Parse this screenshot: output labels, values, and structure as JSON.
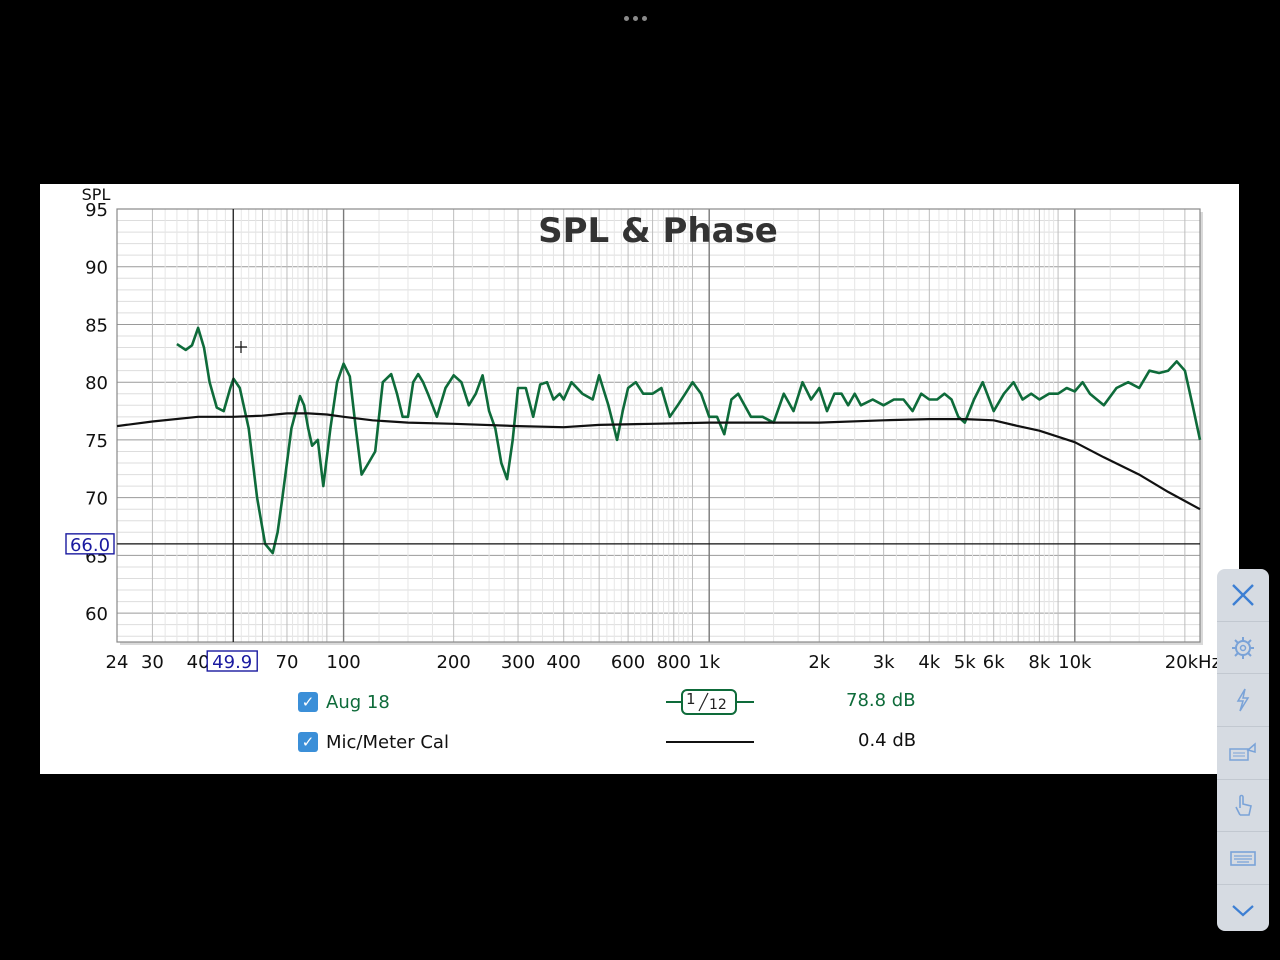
{
  "chart_data": {
    "type": "line",
    "title": "SPL & Phase",
    "ylabel": "SPL",
    "xlabel": "",
    "x_scale": "log",
    "xlim": [
      24,
      22000
    ],
    "ylim": [
      57.5,
      95
    ],
    "y_ticks": [
      "95",
      "90",
      "85",
      "80",
      "75",
      "70",
      "65",
      "60"
    ],
    "x_ticks": [
      "24",
      "30",
      "40",
      "70",
      "100",
      "200",
      "300",
      "400",
      "600",
      "800",
      "1k",
      "2k",
      "3k",
      "4k",
      "5k",
      "6k",
      "8k",
      "10k",
      "20kHz"
    ],
    "cursor": {
      "x_label": "49.9",
      "y_label": "66.0"
    },
    "series": [
      {
        "name": "Aug 18",
        "color": "#0e6b3a",
        "x": [
          35,
          37,
          38.5,
          40,
          41.5,
          43,
          45,
          47,
          49,
          50,
          52,
          55,
          58,
          61,
          64,
          66,
          68,
          72,
          76,
          78,
          80,
          82,
          85,
          88,
          92,
          96,
          100,
          104,
          108,
          112,
          117,
          122,
          128,
          135,
          140,
          145,
          150,
          155,
          160,
          165,
          170,
          180,
          190,
          200,
          210,
          220,
          230,
          240,
          250,
          260,
          270,
          280,
          290,
          300,
          315,
          330,
          345,
          360,
          375,
          390,
          400,
          420,
          450,
          480,
          500,
          530,
          560,
          580,
          600,
          630,
          660,
          700,
          740,
          780,
          820,
          860,
          900,
          950,
          1000,
          1050,
          1100,
          1150,
          1200,
          1300,
          1400,
          1500,
          1600,
          1700,
          1800,
          1900,
          2000,
          2100,
          2200,
          2300,
          2400,
          2500,
          2600,
          2800,
          3000,
          3200,
          3400,
          3600,
          3800,
          4000,
          4200,
          4400,
          4600,
          4800,
          5000,
          5300,
          5600,
          6000,
          6400,
          6800,
          7200,
          7600,
          8000,
          8500,
          9000,
          9500,
          10000,
          10500,
          11000,
          12000,
          13000,
          14000,
          15000,
          16000,
          17000,
          18000,
          19000,
          20000,
          21000,
          22000
        ],
        "values": [
          83.3,
          82.8,
          83.2,
          84.7,
          83.0,
          80.0,
          77.8,
          77.5,
          79.5,
          80.3,
          79.5,
          76.0,
          70.0,
          66.0,
          65.2,
          67.0,
          70.0,
          76.0,
          78.8,
          78.0,
          76.0,
          74.5,
          75.0,
          71.0,
          76.0,
          80.0,
          81.6,
          80.5,
          76.0,
          72.0,
          73.0,
          74.0,
          80.0,
          80.7,
          79.0,
          77.0,
          77.0,
          80.0,
          80.7,
          80.0,
          79.0,
          77.0,
          79.5,
          80.6,
          80.0,
          78.0,
          79.0,
          80.6,
          77.5,
          76.0,
          73.0,
          71.6,
          75.0,
          79.5,
          79.5,
          77.0,
          79.8,
          80.0,
          78.5,
          79.0,
          78.5,
          80.0,
          79.0,
          78.5,
          80.6,
          78.0,
          75.0,
          77.5,
          79.5,
          80.0,
          79.0,
          79.0,
          79.5,
          77.0,
          78.0,
          79.0,
          80.0,
          79.0,
          77.0,
          77.0,
          75.5,
          78.5,
          79.0,
          77.0,
          77.0,
          76.5,
          79.0,
          77.5,
          80.0,
          78.5,
          79.5,
          77.5,
          79.0,
          79.0,
          78.0,
          79.0,
          78.0,
          78.5,
          78.0,
          78.5,
          78.5,
          77.5,
          79.0,
          78.5,
          78.5,
          79.0,
          78.5,
          77.0,
          76.5,
          78.5,
          80.0,
          77.5,
          79.0,
          80.0,
          78.5,
          79.0,
          78.5,
          79.0,
          79.0,
          79.5,
          79.2,
          80.0,
          79.0,
          78.0,
          79.5,
          80.0,
          79.5,
          81.0,
          80.8,
          81.0,
          81.8,
          81.0,
          78.0,
          75.0
        ]
      },
      {
        "name": "Mic/Meter Cal",
        "color": "#111111",
        "x": [
          24,
          30,
          40,
          50,
          60,
          70,
          80,
          90,
          100,
          120,
          150,
          200,
          300,
          400,
          500,
          700,
          1000,
          1500,
          2000,
          3000,
          4000,
          5000,
          6000,
          7000,
          8000,
          10000,
          12000,
          15000,
          18000,
          22000
        ],
        "values": [
          76.2,
          76.6,
          77.0,
          77.0,
          77.1,
          77.3,
          77.3,
          77.2,
          77.0,
          76.7,
          76.5,
          76.4,
          76.2,
          76.1,
          76.3,
          76.4,
          76.5,
          76.5,
          76.5,
          76.7,
          76.8,
          76.8,
          76.7,
          76.2,
          75.8,
          74.8,
          73.5,
          72.0,
          70.5,
          69.0
        ]
      }
    ]
  },
  "legend": [
    {
      "name": "Aug 18",
      "checked": true,
      "value": "78.8 dB",
      "smoothing_num": "1",
      "smoothing_den": "12",
      "color": "#0e6b3a"
    },
    {
      "name": "Mic/Meter Cal",
      "checked": true,
      "value": "0.4 dB",
      "color": "#111111"
    }
  ],
  "toolbar": {
    "buttons": [
      "close-icon",
      "gear-icon",
      "lightning-icon",
      "keyboard-mouse-icon",
      "touch-hand-icon",
      "keyboard-icon",
      "chevron-down-icon"
    ]
  }
}
